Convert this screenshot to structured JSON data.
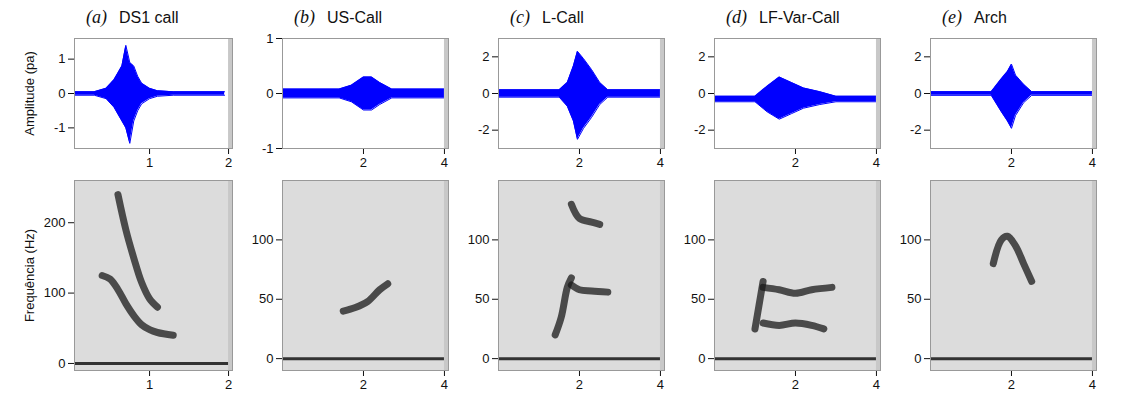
{
  "chart_data": [
    {
      "type": "area",
      "label": "(a)",
      "title": "DS1 call",
      "ylabel": "Amplitude (pa)",
      "color": "#0000ff",
      "x": [
        0.05,
        0.3,
        0.45,
        0.55,
        0.6,
        0.65,
        0.7,
        0.75,
        0.8,
        0.85,
        0.9,
        1.0,
        1.1,
        1.3,
        1.95
      ],
      "upper": [
        0.05,
        0.05,
        0.15,
        0.4,
        0.6,
        0.8,
        1.4,
        0.9,
        0.8,
        0.5,
        0.3,
        0.15,
        0.08,
        0.05,
        0.05
      ],
      "lower": [
        -0.05,
        -0.05,
        -0.15,
        -0.4,
        -0.6,
        -0.8,
        -1.0,
        -1.45,
        -0.8,
        -0.5,
        -0.3,
        -0.15,
        -0.08,
        -0.05,
        -0.05
      ],
      "xlim": [
        0.05,
        2.05
      ],
      "xticks": [
        1,
        2
      ],
      "ylim": [
        -1.6,
        1.6
      ],
      "yticks": [
        -1,
        0,
        1
      ]
    },
    {
      "type": "area",
      "label": "(b)",
      "title": "US-Call",
      "color": "#0000ff",
      "x": [
        0,
        1.4,
        1.7,
        2.0,
        2.2,
        2.4,
        2.7,
        4.0
      ],
      "upper": [
        0.08,
        0.08,
        0.15,
        0.3,
        0.3,
        0.2,
        0.08,
        0.08
      ],
      "lower": [
        -0.08,
        -0.08,
        -0.15,
        -0.3,
        -0.3,
        -0.2,
        -0.08,
        -0.08
      ],
      "xlim": [
        0,
        4.1
      ],
      "xticks": [
        2,
        4
      ],
      "ylim": [
        -1,
        1
      ],
      "yticks": [
        -1,
        0,
        1
      ]
    },
    {
      "type": "area",
      "label": "(c)",
      "title": "L-Call",
      "color": "#0000ff",
      "x": [
        0,
        1.5,
        1.7,
        1.85,
        1.95,
        2.1,
        2.3,
        2.5,
        2.7,
        4.0
      ],
      "upper": [
        0.2,
        0.2,
        0.6,
        1.5,
        2.3,
        1.9,
        1.3,
        0.6,
        0.2,
        0.2
      ],
      "lower": [
        -0.2,
        -0.2,
        -0.7,
        -1.5,
        -2.5,
        -1.9,
        -1.3,
        -0.6,
        -0.2,
        -0.2
      ],
      "xlim": [
        0,
        4.1
      ],
      "xticks": [
        2,
        4
      ],
      "ylim": [
        -3,
        3
      ],
      "yticks": [
        -2,
        0,
        2
      ]
    },
    {
      "type": "area",
      "label": "(d)",
      "title": "LF-Var-Call",
      "color": "#0000ff",
      "x": [
        0,
        1.0,
        1.3,
        1.6,
        1.9,
        2.2,
        2.6,
        3.0,
        4.0
      ],
      "upper": [
        -0.15,
        -0.15,
        0.4,
        0.9,
        0.6,
        0.3,
        0.1,
        -0.15,
        -0.15
      ],
      "lower": [
        -0.45,
        -0.45,
        -1.0,
        -1.4,
        -1.1,
        -0.8,
        -0.6,
        -0.45,
        -0.45
      ],
      "xlim": [
        0,
        4.1
      ],
      "xticks": [
        2,
        4
      ],
      "ylim": [
        -3,
        3
      ],
      "yticks": [
        -2,
        0,
        2
      ]
    },
    {
      "type": "area",
      "label": "(e)",
      "title": "Arch",
      "color": "#0000ff",
      "x": [
        0,
        1.5,
        1.75,
        1.9,
        2.0,
        2.1,
        2.3,
        2.5,
        4.0
      ],
      "upper": [
        0.1,
        0.1,
        0.8,
        1.2,
        1.6,
        1.0,
        0.5,
        0.1,
        0.1
      ],
      "lower": [
        -0.1,
        -0.1,
        -1.0,
        -1.5,
        -1.9,
        -1.2,
        -0.5,
        -0.1,
        -0.1
      ],
      "xlim": [
        0,
        4.1
      ],
      "xticks": [
        2,
        4
      ],
      "ylim": [
        -3,
        3
      ],
      "yticks": [
        -2,
        0,
        2
      ]
    },
    {
      "type": "line",
      "ylabel": "Frequência (Hz)",
      "color": "#1a1a1a",
      "series": [
        {
          "x": [
            0.4,
            0.5,
            0.6,
            0.7,
            0.8,
            0.9,
            1.0,
            1.1,
            1.3
          ],
          "values": [
            125,
            120,
            105,
            85,
            68,
            55,
            48,
            44,
            40
          ]
        },
        {
          "x": [
            0.6,
            0.7,
            0.8,
            0.9,
            1.0,
            1.1
          ],
          "values": [
            240,
            190,
            150,
            115,
            92,
            80
          ]
        }
      ],
      "xlim": [
        0.05,
        2.05
      ],
      "xticks": [
        1,
        2
      ],
      "ylim": [
        -10,
        260
      ],
      "yticks": [
        0,
        100,
        200
      ]
    },
    {
      "type": "line",
      "color": "#1a1a1a",
      "series": [
        {
          "x": [
            1.5,
            1.8,
            2.1,
            2.4,
            2.6
          ],
          "values": [
            40,
            43,
            48,
            58,
            63
          ]
        }
      ],
      "xlim": [
        0,
        4.1
      ],
      "xticks": [
        2,
        4
      ],
      "ylim": [
        -10,
        150
      ],
      "yticks": [
        0,
        50,
        100
      ]
    },
    {
      "type": "line",
      "color": "#1a1a1a",
      "series": [
        {
          "x": [
            1.4,
            1.55,
            1.7,
            1.8
          ],
          "values": [
            20,
            35,
            60,
            68
          ]
        },
        {
          "x": [
            1.8,
            2.0,
            2.3,
            2.7
          ],
          "values": [
            62,
            58,
            57,
            56
          ]
        },
        {
          "x": [
            1.8,
            2.0,
            2.3,
            2.5
          ],
          "values": [
            130,
            118,
            115,
            113
          ]
        }
      ],
      "xlim": [
        0,
        4.1
      ],
      "xticks": [
        2,
        4
      ],
      "ylim": [
        -10,
        150
      ],
      "yticks": [
        0,
        50,
        100
      ]
    },
    {
      "type": "line",
      "color": "#1a1a1a",
      "series": [
        {
          "x": [
            1.0,
            1.1,
            1.2
          ],
          "values": [
            25,
            45,
            65
          ]
        },
        {
          "x": [
            1.2,
            1.6,
            2.0,
            2.4,
            2.9
          ],
          "values": [
            60,
            58,
            55,
            58,
            60
          ]
        },
        {
          "x": [
            1.2,
            1.6,
            2.0,
            2.4,
            2.7
          ],
          "values": [
            30,
            28,
            30,
            28,
            25
          ]
        }
      ],
      "xlim": [
        0,
        4.1
      ],
      "xticks": [
        2,
        4
      ],
      "ylim": [
        -10,
        150
      ],
      "yticks": [
        0,
        50,
        100
      ]
    },
    {
      "type": "line",
      "color": "#1a1a1a",
      "series": [
        {
          "x": [
            1.55,
            1.75,
            1.9,
            2.1,
            2.3,
            2.5
          ],
          "values": [
            80,
            100,
            103,
            95,
            80,
            65
          ]
        }
      ],
      "xlim": [
        0,
        4.1
      ],
      "xticks": [
        2,
        4
      ],
      "ylim": [
        -10,
        150
      ],
      "yticks": [
        0,
        50,
        100
      ]
    }
  ]
}
